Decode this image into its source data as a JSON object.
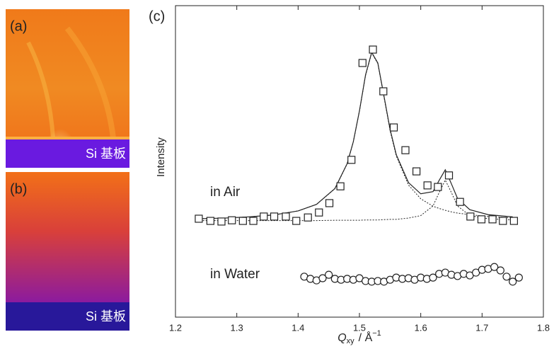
{
  "panels": [
    {
      "label": "(a)",
      "substrate": "Si 基板"
    },
    {
      "label": "(b)",
      "substrate": "Si 基板"
    }
  ],
  "chart_data": {
    "type": "scatter",
    "label": "(c)",
    "y_label": "Intensity",
    "x_label": {
      "symbol": "Q",
      "subscript": "xy",
      "unit": "/ Å",
      "superscript": "−1"
    },
    "xlim": [
      1.2,
      1.8
    ],
    "xticks": [
      1.2,
      1.3,
      1.4,
      1.5,
      1.6,
      1.7,
      1.8
    ],
    "ylim": [
      0,
      100
    ],
    "annotations": [
      {
        "text": "in Air"
      },
      {
        "text": "in Water"
      }
    ],
    "series": [
      {
        "marker": "square",
        "color": "#222",
        "x": [
          1.238,
          1.257,
          1.275,
          1.292,
          1.31,
          1.327,
          1.344,
          1.361,
          1.38,
          1.397,
          1.416,
          1.434,
          1.451,
          1.469,
          1.487,
          1.505,
          1.522,
          1.539,
          1.556,
          1.575,
          1.593,
          1.611,
          1.628,
          1.646,
          1.664,
          1.681,
          1.699,
          1.717,
          1.734,
          1.752
        ],
        "values": [
          31.6,
          30.9,
          30.7,
          31.1,
          30.9,
          30.9,
          32.3,
          32.3,
          32.3,
          30.9,
          32.0,
          33.6,
          36.6,
          42.0,
          50.5,
          81.6,
          85.9,
          72.5,
          60.9,
          53.6,
          46.8,
          42.3,
          41.8,
          45.5,
          37.0,
          32.3,
          31.4,
          31.4,
          30.9,
          30.9
        ]
      },
      {
        "marker": "circle",
        "color": "#222",
        "x": [
          1.41,
          1.42,
          1.43,
          1.44,
          1.45,
          1.46,
          1.47,
          1.48,
          1.49,
          1.5,
          1.51,
          1.52,
          1.53,
          1.54,
          1.55,
          1.56,
          1.57,
          1.58,
          1.59,
          1.6,
          1.61,
          1.62,
          1.63,
          1.64,
          1.65,
          1.66,
          1.67,
          1.68,
          1.69,
          1.7,
          1.71,
          1.72,
          1.73,
          1.74,
          1.75,
          1.76
        ],
        "values": [
          13.0,
          12.3,
          11.8,
          12.5,
          13.6,
          12.3,
          12.0,
          12.3,
          12.0,
          12.5,
          11.6,
          11.4,
          11.6,
          11.4,
          12.0,
          12.7,
          12.3,
          12.5,
          12.0,
          12.7,
          12.3,
          12.7,
          13.9,
          14.3,
          13.6,
          13.2,
          13.9,
          13.4,
          14.3,
          15.2,
          15.5,
          16.1,
          15.0,
          13.0,
          11.4,
          12.7
        ]
      },
      {
        "marker": "line",
        "dash": false,
        "color": "#222",
        "x": [
          1.24,
          1.28,
          1.32,
          1.36,
          1.4,
          1.43,
          1.46,
          1.48,
          1.49,
          1.5,
          1.51,
          1.52,
          1.53,
          1.54,
          1.55,
          1.56,
          1.58,
          1.6,
          1.62,
          1.63,
          1.64,
          1.65,
          1.66,
          1.68,
          1.71,
          1.75
        ],
        "values": [
          31.6,
          31.8,
          32.2,
          32.8,
          34.1,
          36.2,
          41.3,
          49.3,
          56.3,
          66.2,
          77.8,
          85.0,
          81.6,
          71.0,
          60.3,
          52.2,
          43.2,
          39.6,
          40.3,
          43.9,
          47.3,
          42.8,
          38.1,
          34.5,
          32.9,
          32.2
        ]
      },
      {
        "marker": "line",
        "dash": true,
        "color": "#222",
        "x": [
          1.24,
          1.28,
          1.32,
          1.36,
          1.4,
          1.43,
          1.46,
          1.48,
          1.49,
          1.5,
          1.51,
          1.52,
          1.53,
          1.54,
          1.55,
          1.56,
          1.58,
          1.6,
          1.62,
          1.63,
          1.64,
          1.65,
          1.66,
          1.68,
          1.71,
          1.75
        ],
        "values": [
          31.6,
          31.8,
          32.2,
          32.8,
          34.1,
          36.2,
          41.2,
          49.2,
          56.2,
          66.1,
          77.6,
          84.8,
          81.4,
          70.7,
          59.9,
          51.8,
          42.4,
          38.0,
          35.6,
          34.9,
          34.3,
          33.8,
          33.4,
          32.9,
          32.3,
          31.9
        ]
      },
      {
        "marker": "line",
        "dash": true,
        "color": "#222",
        "x": [
          1.24,
          1.28,
          1.32,
          1.36,
          1.4,
          1.43,
          1.46,
          1.48,
          1.49,
          1.5,
          1.51,
          1.52,
          1.53,
          1.54,
          1.55,
          1.56,
          1.58,
          1.6,
          1.62,
          1.63,
          1.64,
          1.65,
          1.66,
          1.68,
          1.71,
          1.75
        ],
        "values": [
          31.0,
          31.0,
          31.0,
          31.0,
          31.0,
          31.0,
          31.1,
          31.1,
          31.1,
          31.1,
          31.2,
          31.2,
          31.2,
          31.3,
          31.4,
          31.4,
          31.8,
          32.6,
          35.7,
          40.0,
          44.0,
          40.0,
          35.7,
          32.6,
          31.6,
          31.2
        ]
      }
    ]
  }
}
